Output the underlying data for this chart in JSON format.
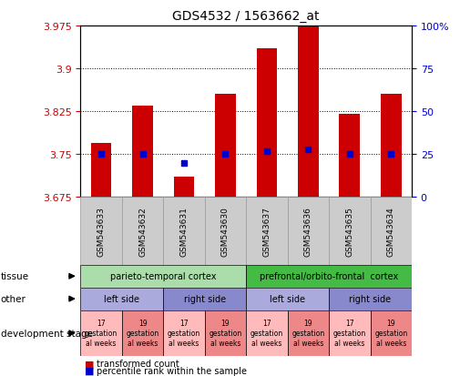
{
  "title": "GDS4532 / 1563662_at",
  "samples": [
    "GSM543633",
    "GSM543632",
    "GSM543631",
    "GSM543630",
    "GSM543637",
    "GSM543636",
    "GSM543635",
    "GSM543634"
  ],
  "bar_values": [
    3.77,
    3.835,
    3.71,
    3.855,
    3.935,
    3.975,
    3.82,
    3.855
  ],
  "percentile_values": [
    3.75,
    3.75,
    3.735,
    3.75,
    3.755,
    3.758,
    3.75,
    3.75
  ],
  "ylim_left": [
    3.675,
    3.975
  ],
  "ylim_right": [
    0,
    100
  ],
  "yticks_left": [
    3.675,
    3.75,
    3.825,
    3.9,
    3.975
  ],
  "yticks_right": [
    0,
    25,
    50,
    75,
    100
  ],
  "ytick_labels_left": [
    "3.675",
    "3.75",
    "3.825",
    "3.9",
    "3.975"
  ],
  "ytick_labels_right": [
    "0",
    "25",
    "50",
    "75",
    "100%"
  ],
  "hlines": [
    3.75,
    3.825,
    3.9
  ],
  "bar_color": "#cc0000",
  "percentile_color": "#0000cc",
  "bar_bottom": 3.675,
  "tissue_groups": [
    {
      "label": "parieto-temporal cortex",
      "start": 0,
      "end": 4,
      "color": "#aaddaa"
    },
    {
      "label": "prefrontal/orbito-frontal  cortex",
      "start": 4,
      "end": 8,
      "color": "#44bb44"
    }
  ],
  "other_groups": [
    {
      "label": "left side",
      "start": 0,
      "end": 2,
      "color": "#aaaadd"
    },
    {
      "label": "right side",
      "start": 2,
      "end": 4,
      "color": "#8888cc"
    },
    {
      "label": "left side",
      "start": 4,
      "end": 6,
      "color": "#aaaadd"
    },
    {
      "label": "right side",
      "start": 6,
      "end": 8,
      "color": "#8888cc"
    }
  ],
  "dev_groups": [
    {
      "label": "17\ngestation\nal weeks",
      "start": 0,
      "end": 1,
      "color": "#ffbbbb"
    },
    {
      "label": "19\ngestation\nal weeks",
      "start": 1,
      "end": 2,
      "color": "#ee8888"
    },
    {
      "label": "17\ngestation\nal weeks",
      "start": 2,
      "end": 3,
      "color": "#ffbbbb"
    },
    {
      "label": "19\ngestation\nal weeks",
      "start": 3,
      "end": 4,
      "color": "#ee8888"
    },
    {
      "label": "17\ngestation\nal weeks",
      "start": 4,
      "end": 5,
      "color": "#ffbbbb"
    },
    {
      "label": "19\ngestation\nal weeks",
      "start": 5,
      "end": 6,
      "color": "#ee8888"
    },
    {
      "label": "17\ngestation\nal weeks",
      "start": 6,
      "end": 7,
      "color": "#ffbbbb"
    },
    {
      "label": "19\ngestation\nal weeks",
      "start": 7,
      "end": 8,
      "color": "#ee8888"
    }
  ],
  "legend_items": [
    {
      "label": "transformed count",
      "color": "#cc0000"
    },
    {
      "label": "percentile rank within the sample",
      "color": "#0000cc"
    }
  ],
  "tick_label_color_left": "#cc0000",
  "tick_label_color_right": "#0000cc",
  "sample_box_color": "#cccccc",
  "sample_box_edge": "#999999"
}
